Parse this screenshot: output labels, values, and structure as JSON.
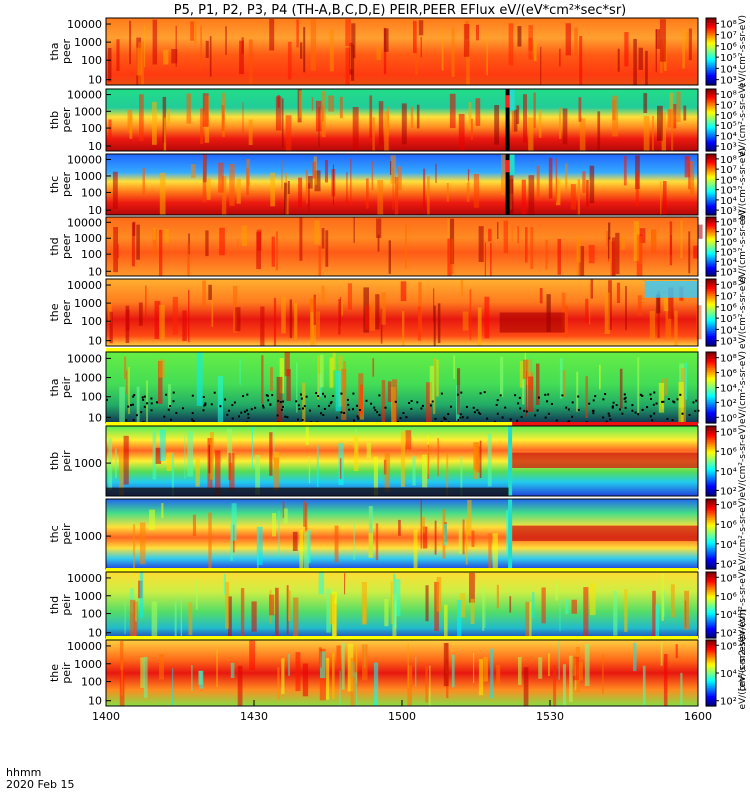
{
  "title": "P5, P1, P2, P3, P4 (TH-A,B,C,D,E) PEIR,PEER EFlux eV/(eV*cm²*sec*sr)",
  "footer": {
    "label1": "hhmm",
    "label2": "2020 Feb 15"
  },
  "colorbar_units": "[eV/(cm2-s-sr-eV)]",
  "chart_data": [
    {
      "type": "heatmap",
      "probe": "tha",
      "species": "peer",
      "ylabel_lines": [
        "tha",
        "peer"
      ],
      "yticks": [
        "10000",
        "1000",
        "100",
        "10"
      ],
      "cbar_ticks": [
        "10⁸",
        "10⁷",
        "10⁶",
        "10⁵",
        "10⁴",
        "10³"
      ],
      "cbar_unit": "eV/(cm²-s-sr-eV)",
      "cbar_dmin": 3,
      "cbar_dmax": 8.3,
      "fill_bar": false,
      "data_gap_top": false,
      "xlim": [
        "1400",
        "1600"
      ]
    },
    {
      "type": "heatmap",
      "probe": "thb",
      "species": "peer",
      "ylabel_lines": [
        "thb",
        "peer"
      ],
      "yticks": [
        "10000",
        "1000",
        "100",
        "10"
      ],
      "cbar_ticks": [
        "10⁸",
        "10⁷",
        "10⁶",
        "10⁵",
        "10⁴",
        "10³"
      ],
      "cbar_unit": "eV/(cm²-s-sr-eV)",
      "cbar_dmin": 3,
      "cbar_dmax": 8.3,
      "fill_bar": false,
      "data_gap_top": true,
      "xlim": [
        "1400",
        "1600"
      ]
    },
    {
      "type": "heatmap",
      "probe": "thc",
      "species": "peer",
      "ylabel_lines": [
        "thc",
        "peer"
      ],
      "yticks": [
        "10000",
        "1000",
        "100",
        "10"
      ],
      "cbar_ticks": [
        "10⁸",
        "10⁷",
        "10⁶",
        "10⁵",
        "10⁴",
        "10³"
      ],
      "cbar_unit": "eV/(cm²-s-sr-eV)",
      "cbar_dmin": 3,
      "cbar_dmax": 8.3,
      "fill_bar": false,
      "data_gap_top": true,
      "xlim": [
        "1400",
        "1600"
      ]
    },
    {
      "type": "heatmap",
      "probe": "thd",
      "species": "peer",
      "ylabel_lines": [
        "thd",
        "peer"
      ],
      "yticks": [
        "10000",
        "1000",
        "100",
        "10"
      ],
      "cbar_ticks": [
        "10⁸",
        "10⁷",
        "10⁶",
        "10⁵",
        "10⁴",
        "10³"
      ],
      "cbar_unit": "eV/(cm²-s-sr-eV)",
      "cbar_dmin": 3,
      "cbar_dmax": 8.3,
      "fill_bar": false,
      "data_gap_top": false,
      "xlim": [
        "1400",
        "1600"
      ]
    },
    {
      "type": "heatmap",
      "probe": "the",
      "species": "peer",
      "ylabel_lines": [
        "the",
        "peer"
      ],
      "yticks": [
        "10000",
        "1000",
        "100",
        "10"
      ],
      "cbar_ticks": [
        "10⁸",
        "10⁷",
        "10⁶",
        "10⁵",
        "10⁴",
        "10³"
      ],
      "cbar_unit": "eV/(cm²-s-sr-eV)",
      "cbar_dmin": 3,
      "cbar_dmax": 8.3,
      "fill_bar": false,
      "data_gap_top": false,
      "xlim": [
        "1400",
        "1600"
      ]
    },
    {
      "type": "heatmap",
      "probe": "tha",
      "species": "peir",
      "ylabel_lines": [
        "tha",
        "peir"
      ],
      "yticks": [
        "10000",
        "1000",
        "100",
        "10"
      ],
      "cbar_ticks": [
        "10⁸",
        "10⁶",
        "10⁴",
        "10²",
        "10⁰"
      ],
      "cbar_unit": "eV/(cm²-s-sr-eV)",
      "cbar_dmin": 0,
      "cbar_dmax": 8.5,
      "fill_bar": true,
      "fill_bar_color": "#ffff00",
      "data_gap_top": false,
      "xlim": [
        "1400",
        "1600"
      ]
    },
    {
      "type": "heatmap",
      "probe": "thb",
      "species": "peir",
      "ylabel_lines": [
        "thb",
        "peir"
      ],
      "yticks": [
        "1000"
      ],
      "cbar_ticks": [
        "10⁸",
        "10⁶",
        "10⁴",
        "10²"
      ],
      "cbar_unit": "eV/(cm²-s-sr-eV)",
      "cbar_dmin": 1.5,
      "cbar_dmax": 8.5,
      "fill_bar": true,
      "fill_bar_color": "#ffff00",
      "data_gap_top": false,
      "xlim": [
        "1400",
        "1600"
      ]
    },
    {
      "type": "heatmap",
      "probe": "thc",
      "species": "peir",
      "ylabel_lines": [
        "thc",
        "peir"
      ],
      "yticks": [
        "1000"
      ],
      "cbar_ticks": [
        "10⁸",
        "10⁶",
        "10⁴",
        "10²"
      ],
      "cbar_unit": "eV/(cm²-s-sr-eV)",
      "cbar_dmin": 1.5,
      "cbar_dmax": 8.5,
      "fill_bar": false,
      "data_gap_top": false,
      "xlim": [
        "1400",
        "1600"
      ]
    },
    {
      "type": "heatmap",
      "probe": "thd",
      "species": "peir",
      "ylabel_lines": [
        "thd",
        "peir"
      ],
      "yticks": [
        "10000",
        "1000",
        "100",
        "10"
      ],
      "cbar_ticks": [
        "10⁸",
        "10⁶",
        "10⁴",
        "10²"
      ],
      "cbar_unit": "eV/(cm²-s-sr-eV)",
      "cbar_dmin": 1.5,
      "cbar_dmax": 8.5,
      "fill_bar": true,
      "fill_bar_color": "#ffff00",
      "data_gap_top": false,
      "xlim": [
        "1400",
        "1600"
      ]
    },
    {
      "type": "heatmap",
      "probe": "the",
      "species": "peir",
      "ylabel_lines": [
        "the",
        "peir"
      ],
      "yticks": [
        "10000",
        "1000",
        "100",
        "10"
      ],
      "cbar_ticks": [
        "10⁶",
        "10⁴",
        "10²"
      ],
      "cbar_unit": "eV/(cm²-s-sr-eV)",
      "cbar_dmin": 1.5,
      "cbar_dmax": 7.5,
      "fill_bar": true,
      "fill_bar_color": "#ffff00",
      "data_gap_top": false,
      "xlim": [
        "1400",
        "1600"
      ]
    }
  ],
  "xaxis": {
    "ticks": [
      "1400",
      "1430",
      "1500",
      "1530",
      "1600"
    ]
  }
}
